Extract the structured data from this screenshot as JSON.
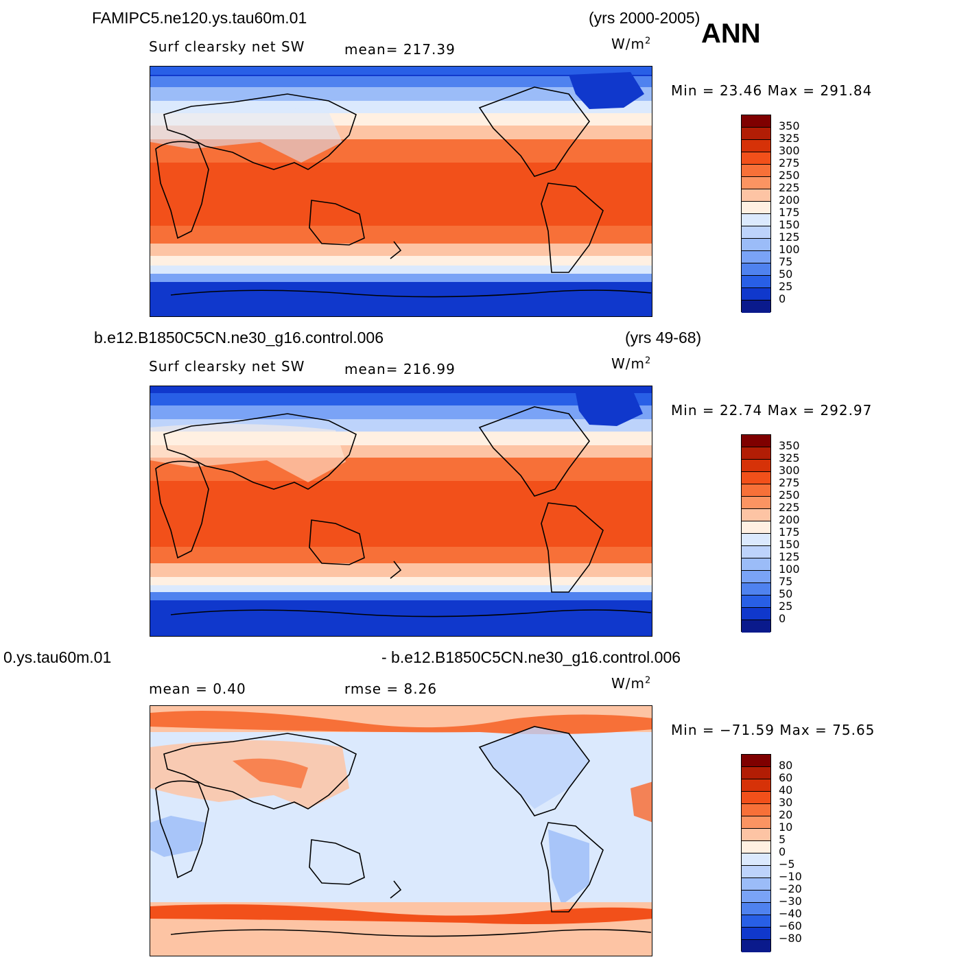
{
  "season": "ANN",
  "units_base": "W/m",
  "units_exp": "2",
  "panels": [
    {
      "case": "FAMIPC5.ne120.ys.tau60m.01",
      "years": "(yrs 2000-2005)",
      "left_label": "Surf clearsky net SW",
      "center_label": "mean= 217.39",
      "minmax": "Min =   23.46 Max = 291.84",
      "colorbar_ticks": [
        "350",
        "325",
        "300",
        "275",
        "250",
        "225",
        "200",
        "175",
        "150",
        "125",
        "100",
        "75",
        "50",
        "25",
        "0"
      ]
    },
    {
      "case": "b.e12.B1850C5CN.ne30_g16.control.006",
      "years": "(yrs 49-68)",
      "left_label": "Surf clearsky net SW",
      "center_label": "mean= 216.99",
      "minmax": "Min =   22.74 Max = 292.97",
      "colorbar_ticks": [
        "350",
        "325",
        "300",
        "275",
        "250",
        "225",
        "200",
        "175",
        "150",
        "125",
        "100",
        "75",
        "50",
        "25",
        "0"
      ]
    },
    {
      "case": "0.ys.tau60m.01",
      "years": "- b.e12.B1850C5CN.ne30_g16.control.006",
      "left_label": "mean =    0.40",
      "center_label": "rmse =    8.26",
      "minmax": "Min = −71.59 Max =  75.65",
      "colorbar_ticks": [
        "80",
        "60",
        "40",
        "30",
        "20",
        "10",
        "5",
        "0",
        "−5",
        "−10",
        "−20",
        "−30",
        "−40",
        "−60",
        "−80"
      ]
    }
  ],
  "colors_abs": [
    "#7f0000",
    "#b21d05",
    "#d63208",
    "#f2501a",
    "#f77038",
    "#fb9462",
    "#fdc4a4",
    "#fff0e2",
    "#dbe9fd",
    "#bdd3fb",
    "#9bbcf8",
    "#7aa3f6",
    "#4f82ef",
    "#285fe6",
    "#1038cc",
    "#0a1a8c"
  ],
  "colors_diff": [
    "#7f0000",
    "#b21d05",
    "#d63208",
    "#f2501a",
    "#f77038",
    "#fb9462",
    "#fdc4a4",
    "#fff0e2",
    "#dbe9fd",
    "#bdd3fb",
    "#9bbcf8",
    "#7aa3f6",
    "#4f82ef",
    "#285fe6",
    "#1038cc",
    "#0a1a8c"
  ]
}
